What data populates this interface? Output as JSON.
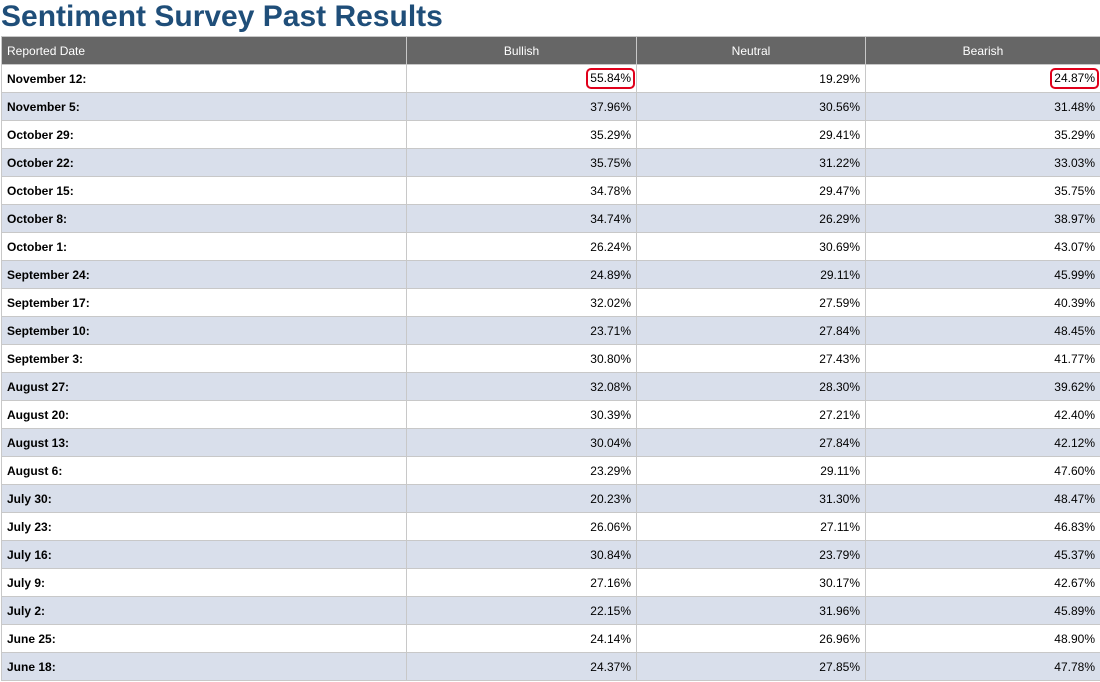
{
  "page": {
    "title": "Sentiment Survey Past Results"
  },
  "table": {
    "headers": {
      "date": "Reported Date",
      "bullish": "Bullish",
      "neutral": "Neutral",
      "bearish": "Bearish"
    },
    "highlight_color": "#e0001b",
    "rows": [
      {
        "date": "November 12:",
        "bullish": "55.84%",
        "neutral": "19.29%",
        "bearish": "24.87%",
        "highlighted": [
          "bullish",
          "bearish"
        ]
      },
      {
        "date": "November 5:",
        "bullish": "37.96%",
        "neutral": "30.56%",
        "bearish": "31.48%"
      },
      {
        "date": "October 29:",
        "bullish": "35.29%",
        "neutral": "29.41%",
        "bearish": "35.29%"
      },
      {
        "date": "October 22:",
        "bullish": "35.75%",
        "neutral": "31.22%",
        "bearish": "33.03%"
      },
      {
        "date": "October 15:",
        "bullish": "34.78%",
        "neutral": "29.47%",
        "bearish": "35.75%"
      },
      {
        "date": "October 8:",
        "bullish": "34.74%",
        "neutral": "26.29%",
        "bearish": "38.97%"
      },
      {
        "date": "October 1:",
        "bullish": "26.24%",
        "neutral": "30.69%",
        "bearish": "43.07%"
      },
      {
        "date": "September 24:",
        "bullish": "24.89%",
        "neutral": "29.11%",
        "bearish": "45.99%"
      },
      {
        "date": "September 17:",
        "bullish": "32.02%",
        "neutral": "27.59%",
        "bearish": "40.39%"
      },
      {
        "date": "September 10:",
        "bullish": "23.71%",
        "neutral": "27.84%",
        "bearish": "48.45%"
      },
      {
        "date": "September 3:",
        "bullish": "30.80%",
        "neutral": "27.43%",
        "bearish": "41.77%"
      },
      {
        "date": "August 27:",
        "bullish": "32.08%",
        "neutral": "28.30%",
        "bearish": "39.62%"
      },
      {
        "date": "August 20:",
        "bullish": "30.39%",
        "neutral": "27.21%",
        "bearish": "42.40%"
      },
      {
        "date": "August 13:",
        "bullish": "30.04%",
        "neutral": "27.84%",
        "bearish": "42.12%"
      },
      {
        "date": "August 6:",
        "bullish": "23.29%",
        "neutral": "29.11%",
        "bearish": "47.60%"
      },
      {
        "date": "July 30:",
        "bullish": "20.23%",
        "neutral": "31.30%",
        "bearish": "48.47%"
      },
      {
        "date": "July 23:",
        "bullish": "26.06%",
        "neutral": "27.11%",
        "bearish": "46.83%"
      },
      {
        "date": "July 16:",
        "bullish": "30.84%",
        "neutral": "23.79%",
        "bearish": "45.37%"
      },
      {
        "date": "July 9:",
        "bullish": "27.16%",
        "neutral": "30.17%",
        "bearish": "42.67%"
      },
      {
        "date": "July 2:",
        "bullish": "22.15%",
        "neutral": "31.96%",
        "bearish": "45.89%"
      },
      {
        "date": "June 25:",
        "bullish": "24.14%",
        "neutral": "26.96%",
        "bearish": "48.90%"
      },
      {
        "date": "June 18:",
        "bullish": "24.37%",
        "neutral": "27.85%",
        "bearish": "47.78%"
      }
    ]
  }
}
